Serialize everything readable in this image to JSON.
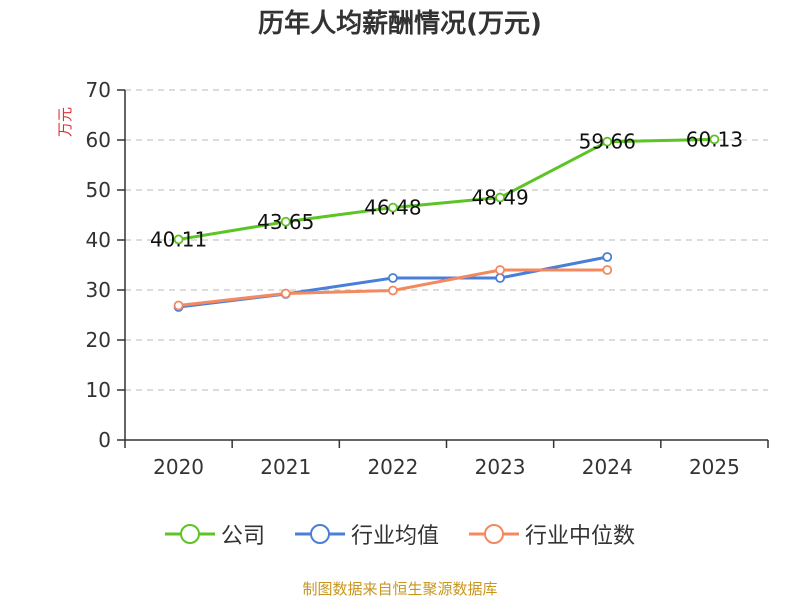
{
  "chart_data": {
    "type": "line",
    "title": "历年人均薪酬情况(万元)",
    "ylabel": "万元",
    "xlabel": "",
    "categories": [
      "2020",
      "2021",
      "2022",
      "2023",
      "2024",
      "2025"
    ],
    "ylim": [
      0,
      70
    ],
    "yticks": [
      0,
      10,
      20,
      30,
      40,
      50,
      60,
      70
    ],
    "grid": true,
    "legend_position": "bottom-center",
    "series": [
      {
        "name": "公司",
        "color": "#5cc424",
        "values": [
          40.11,
          43.65,
          46.48,
          48.49,
          59.66,
          60.13
        ],
        "labels": [
          "40.11",
          "43.65",
          "46.48",
          "48.49",
          "59.66",
          "60.13"
        ],
        "show_labels": true
      },
      {
        "name": "行业均值",
        "color": "#4a7fd8",
        "values": [
          26.6,
          29.2,
          32.4,
          32.4,
          36.6,
          null
        ],
        "show_labels": false
      },
      {
        "name": "行业中位数",
        "color": "#f4895f",
        "values": [
          26.9,
          29.3,
          29.9,
          34.0,
          34.0,
          null
        ],
        "show_labels": false
      }
    ]
  },
  "source": "制图数据来自恒生聚源数据库"
}
